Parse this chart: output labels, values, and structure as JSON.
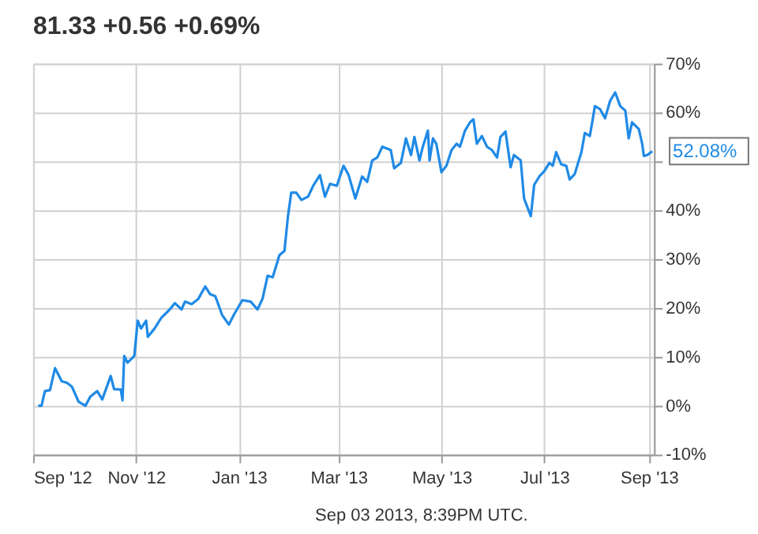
{
  "chart_data": {
    "type": "line",
    "title": "81.33  +0.56  +0.69%",
    "x": [
      "2012-09-04",
      "2012-09-06",
      "2012-09-08",
      "2012-09-11",
      "2012-09-14",
      "2012-09-18",
      "2012-09-21",
      "2012-09-24",
      "2012-09-28",
      "2012-10-02",
      "2012-10-05",
      "2012-10-09",
      "2012-10-12",
      "2012-10-17",
      "2012-10-19",
      "2012-10-23",
      "2012-10-24",
      "2012-10-25",
      "2012-10-27",
      "2012-10-31",
      "2012-11-02",
      "2012-11-04",
      "2012-11-07",
      "2012-11-08",
      "2012-11-12",
      "2012-11-16",
      "2012-11-21",
      "2012-11-24",
      "2012-11-28",
      "2012-11-30",
      "2012-12-04",
      "2012-12-08",
      "2012-12-12",
      "2012-12-15",
      "2012-12-18",
      "2012-12-22",
      "2012-12-26",
      "2012-12-29",
      "2013-01-03",
      "2013-01-08",
      "2013-01-12",
      "2013-01-15",
      "2013-01-18",
      "2013-01-21",
      "2013-01-25",
      "2013-01-28",
      "2013-01-30",
      "2013-02-01",
      "2013-02-04",
      "2013-02-07",
      "2013-02-11",
      "2013-02-14",
      "2013-02-18",
      "2013-02-21",
      "2013-02-24",
      "2013-02-28",
      "2013-03-04",
      "2013-03-07",
      "2013-03-11",
      "2013-03-15",
      "2013-03-18",
      "2013-03-21",
      "2013-03-24",
      "2013-03-27",
      "2013-04-01",
      "2013-04-03",
      "2013-04-07",
      "2013-04-10",
      "2013-04-13",
      "2013-04-15",
      "2013-04-18",
      "2013-04-20",
      "2013-04-23",
      "2013-04-24",
      "2013-04-26",
      "2013-04-28",
      "2013-05-01",
      "2013-05-04",
      "2013-05-07",
      "2013-05-10",
      "2013-05-12",
      "2013-05-15",
      "2013-05-18",
      "2013-05-20",
      "2013-05-22",
      "2013-05-25",
      "2013-05-28",
      "2013-05-31",
      "2013-06-03",
      "2013-06-05",
      "2013-06-08",
      "2013-06-11",
      "2013-06-13",
      "2013-06-17",
      "2013-06-19",
      "2013-06-23",
      "2013-06-25",
      "2013-06-28",
      "2013-07-01",
      "2013-07-04",
      "2013-07-06",
      "2013-07-08",
      "2013-07-11",
      "2013-07-14",
      "2013-07-16",
      "2013-07-19",
      "2013-07-23",
      "2013-07-25",
      "2013-07-28",
      "2013-07-31",
      "2013-08-03",
      "2013-08-06",
      "2013-08-09",
      "2013-08-12",
      "2013-08-15",
      "2013-08-18",
      "2013-08-20",
      "2013-08-22",
      "2013-08-26",
      "2013-08-28",
      "2013-08-29",
      "2013-08-31",
      "2013-09-03"
    ],
    "series": [
      {
        "color": "#1f8ae6",
        "values": [
          0,
          0,
          3,
          3.2,
          7.7,
          5,
          4.7,
          3.9,
          0.8,
          0,
          1.9,
          3,
          1.3,
          6.1,
          3.4,
          3.3,
          1.1,
          10.2,
          8.8,
          10.2,
          17.4,
          15.8,
          17.4,
          14.1,
          15.8,
          18,
          19.7,
          21,
          19.7,
          21.3,
          20.8,
          21.9,
          24.4,
          22.8,
          22.4,
          18.6,
          16.6,
          18.6,
          21.6,
          21.3,
          19.7,
          21.9,
          26.6,
          26.3,
          30.8,
          31.7,
          38.6,
          43.6,
          43.6,
          42.1,
          42.8,
          45,
          47.2,
          42.8,
          45.4,
          45,
          49.1,
          47.2,
          42.4,
          46.9,
          45.8,
          50.2,
          50.8,
          53,
          52.3,
          48.6,
          49.7,
          54.7,
          51.3,
          55,
          50.2,
          53,
          56.3,
          50.2,
          54.7,
          53.6,
          47.8,
          49.1,
          52.3,
          53.6,
          53,
          56.3,
          58,
          58.6,
          53.6,
          55.2,
          53,
          52.3,
          50.8,
          55,
          56.1,
          48.8,
          51.3,
          50.2,
          42.4,
          38.8,
          45.2,
          46.9,
          48,
          49.7,
          49.1,
          51.9,
          49.4,
          49.1,
          46.3,
          47.4,
          51.9,
          55.8,
          55.2,
          61.3,
          60.7,
          58.8,
          62.4,
          64.1,
          61.3,
          60.4,
          54.7,
          58,
          56.6,
          53.6,
          51.1,
          51.3,
          52.08
        ]
      }
    ],
    "xlim": [
      "2012-09-01",
      "2013-09-04"
    ],
    "xticks": [
      {
        "value": "2012-09-01",
        "label": "Sep '12"
      },
      {
        "value": "2012-11-01",
        "label": "Nov '12"
      },
      {
        "value": "2013-01-01",
        "label": "Jan '13"
      },
      {
        "value": "2013-03-01",
        "label": "Mar '13"
      },
      {
        "value": "2013-05-01",
        "label": "May '13"
      },
      {
        "value": "2013-07-01",
        "label": "Jul '13"
      },
      {
        "value": "2013-09-01",
        "label": "Sep '13"
      }
    ],
    "ylim": [
      -10,
      70
    ],
    "yticks": [
      {
        "value": -10,
        "label": "-10%"
      },
      {
        "value": 0,
        "label": "0%"
      },
      {
        "value": 10,
        "label": "10%"
      },
      {
        "value": 20,
        "label": "20%"
      },
      {
        "value": 30,
        "label": "30%"
      },
      {
        "value": 40,
        "label": "40%"
      },
      {
        "value": 50,
        "label": null
      },
      {
        "value": 60,
        "label": "60%"
      },
      {
        "value": 70,
        "label": "70%"
      }
    ],
    "grid": true,
    "marker": "none",
    "line_style": "solid",
    "annotations": [
      {
        "text": "52.08%",
        "x": "2013-09-03",
        "y": 52.08
      },
      "Sep 03 2013, 8:39PM UTC."
    ]
  }
}
